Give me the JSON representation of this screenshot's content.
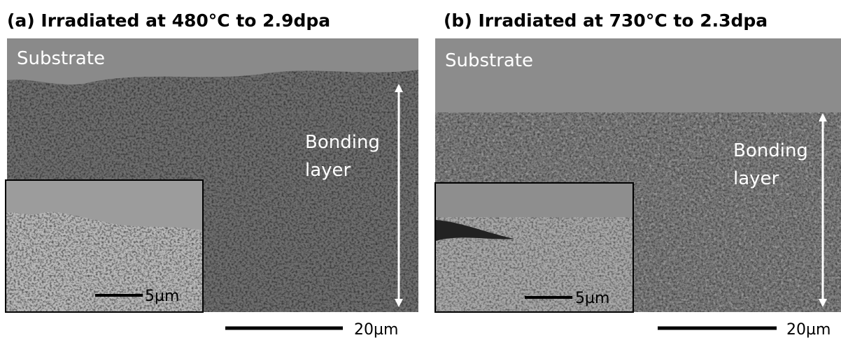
{
  "panels": [
    {
      "title": "(a) Irradiated at 480°C to 2.9dpa",
      "substrate": "Substrate",
      "layer": [
        "Bonding",
        "layer"
      ],
      "inset_scale": "5µm",
      "scale": "20µm"
    },
    {
      "title": "(b) Irradiated at 730°C to 2.3dpa",
      "substrate": "Substrate",
      "layer": [
        "Bonding",
        "layer"
      ],
      "inset_scale": "5µm",
      "scale": "20µm"
    }
  ]
}
